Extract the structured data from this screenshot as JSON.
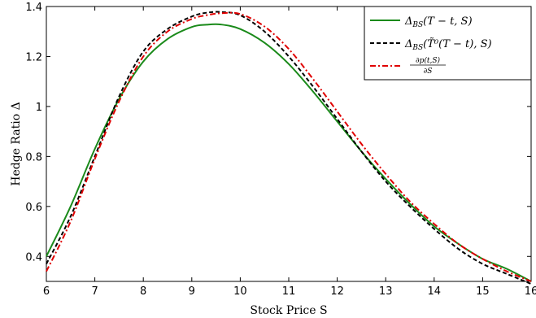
{
  "chart_data": {
    "type": "line",
    "title": "",
    "xlabel": "Stock Price S",
    "ylabel": "Hedge Ratio Δ",
    "xlim": [
      6,
      16
    ],
    "ylim": [
      0.3,
      1.4
    ],
    "xticks": [
      "6",
      "7",
      "8",
      "9",
      "10",
      "11",
      "12",
      "13",
      "14",
      "15",
      "16"
    ],
    "yticks": [
      "0.4",
      "0.6",
      "0.8",
      "1",
      "1.2",
      "1.4"
    ],
    "grid": false,
    "legend_position": "top-right",
    "series": [
      {
        "name": "Δ_BS(T − t, S)",
        "color": "#1a8a1a",
        "dash": "solid",
        "x": [
          6,
          6.5,
          7,
          7.5,
          8,
          8.5,
          9,
          9.3,
          9.6,
          10,
          10.5,
          11,
          11.5,
          12,
          12.5,
          13,
          13.5,
          14,
          14.5,
          15,
          15.5,
          16
        ],
        "y": [
          0.4,
          0.6,
          0.83,
          1.03,
          1.18,
          1.27,
          1.318,
          1.327,
          1.328,
          1.31,
          1.255,
          1.17,
          1.06,
          0.94,
          0.82,
          0.71,
          0.61,
          0.52,
          0.45,
          0.39,
          0.35,
          0.3
        ]
      },
      {
        "name": "Δ_BS(T̃⁰(T − t), S)",
        "color": "#000000",
        "dash": "dashed",
        "x": [
          6,
          6.5,
          7,
          7.5,
          8,
          8.5,
          9,
          9.3,
          9.6,
          10,
          10.5,
          11,
          11.5,
          12,
          12.5,
          13,
          13.5,
          14,
          14.5,
          15,
          15.5,
          16
        ],
        "y": [
          0.37,
          0.56,
          0.8,
          1.04,
          1.22,
          1.31,
          1.36,
          1.375,
          1.378,
          1.365,
          1.3,
          1.2,
          1.08,
          0.95,
          0.82,
          0.7,
          0.6,
          0.51,
          0.43,
          0.37,
          0.33,
          0.29
        ]
      },
      {
        "name": "∂p(t,S) / ∂S",
        "color": "#e00000",
        "dash": "dashdot",
        "x": [
          6,
          6.5,
          7,
          7.5,
          8,
          8.5,
          9,
          9.3,
          9.6,
          10,
          10.5,
          11,
          11.5,
          12,
          12.5,
          13,
          13.5,
          14,
          14.5,
          15,
          15.5,
          16
        ],
        "y": [
          0.34,
          0.54,
          0.79,
          1.02,
          1.2,
          1.3,
          1.35,
          1.365,
          1.373,
          1.37,
          1.32,
          1.23,
          1.11,
          0.98,
          0.85,
          0.73,
          0.62,
          0.53,
          0.45,
          0.39,
          0.34,
          0.3
        ]
      }
    ],
    "legend": {
      "entry1_main": "Δ",
      "entry1_sub": "BS",
      "entry1_rest": "(T − t, S)",
      "entry2_main": "Δ",
      "entry2_sub": "BS",
      "entry2_rest": "(T̃⁰(T − t), S)",
      "entry3_num": "∂p(t,S)",
      "entry3_den": "∂S"
    }
  }
}
